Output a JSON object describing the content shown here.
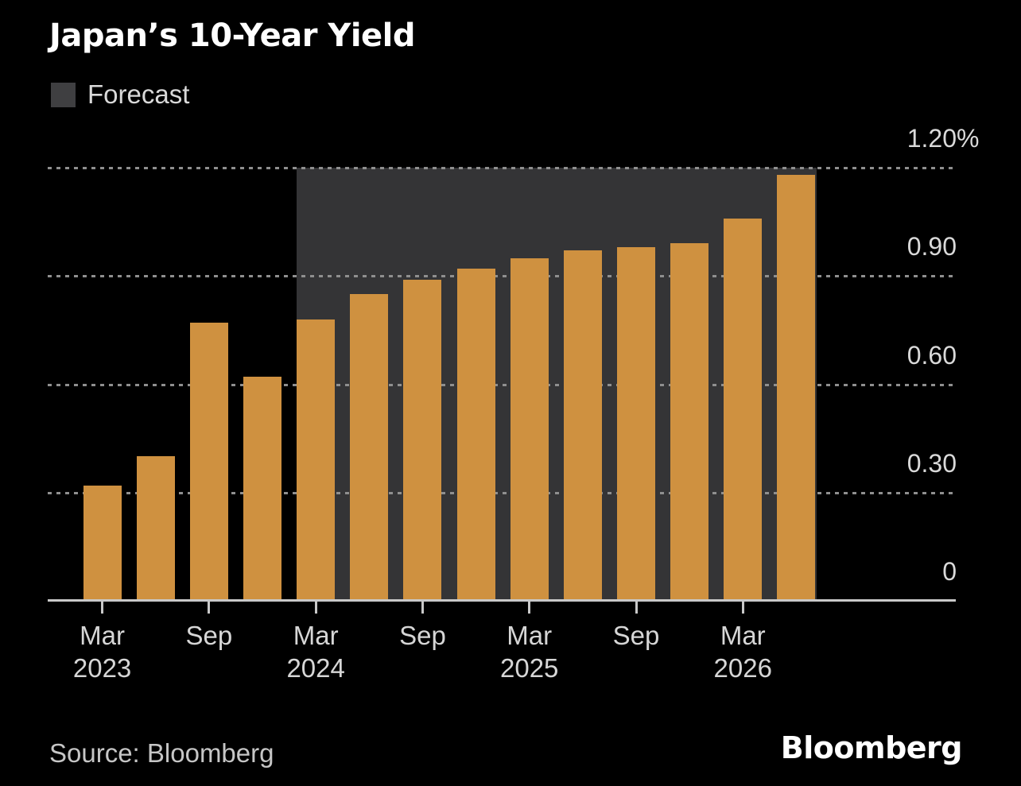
{
  "header": {
    "title": "Japan’s 10-Year Yield"
  },
  "legend": {
    "label": "Forecast"
  },
  "footer": {
    "source": "Source: Bloomberg",
    "branding": "Bloomberg"
  },
  "chart_data": {
    "type": "bar",
    "title": "Japan’s 10-Year Yield",
    "unit": "%",
    "ylim": [
      0,
      1.2
    ],
    "grid": "horizontal-dotted",
    "legend_position": "top-left",
    "categories": [
      "Mar 2023",
      "Jun 2023",
      "Sep 2023",
      "Dec 2023",
      "Mar 2024",
      "Jun 2024",
      "Sep 2024",
      "Dec 2024",
      "Mar 2025",
      "Jun 2025",
      "Sep 2025",
      "Dec 2025",
      "Mar 2026",
      "Jun 2026"
    ],
    "values": [
      0.32,
      0.4,
      0.77,
      0.62,
      0.78,
      0.85,
      0.89,
      0.92,
      0.95,
      0.97,
      0.98,
      0.99,
      1.06,
      1.18
    ],
    "forecast_region": {
      "label": "Forecast",
      "from_category": "Mar 2024",
      "to_category": "Jun 2026"
    },
    "x_ticks": [
      {
        "month": "Mar",
        "year": "2023"
      },
      {
        "month": "Sep",
        "year": ""
      },
      {
        "month": "Mar",
        "year": "2024"
      },
      {
        "month": "Sep",
        "year": ""
      },
      {
        "month": "Mar",
        "year": "2025"
      },
      {
        "month": "Sep",
        "year": ""
      },
      {
        "month": "Mar",
        "year": "2026"
      }
    ],
    "y_ticks": [
      {
        "label": "1.20",
        "suffix": "%",
        "value": 1.2
      },
      {
        "label": "0.90",
        "suffix": "",
        "value": 0.9
      },
      {
        "label": "0.60",
        "suffix": "",
        "value": 0.6
      },
      {
        "label": "0.30",
        "suffix": "",
        "value": 0.3
      },
      {
        "label": "0",
        "suffix": "",
        "value": 0
      }
    ],
    "colors": {
      "background": "#000000",
      "bar": "#cf9140",
      "forecast_region": "#343436",
      "legend_swatch": "#3f3f41",
      "gridline": "#8f8f8f",
      "axis": "#c9c9c9"
    }
  }
}
